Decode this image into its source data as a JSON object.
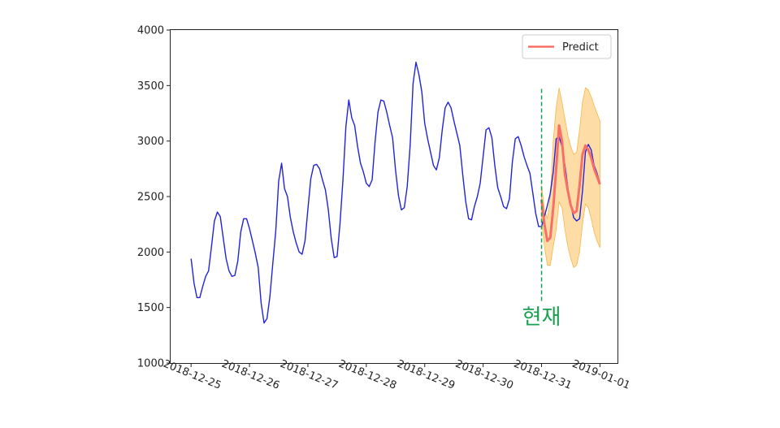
{
  "chart_data": {
    "type": "line",
    "title": "",
    "xlabel": "",
    "ylabel": "",
    "x_ticks": [
      "2018-12-25",
      "2018-12-26",
      "2018-12-27",
      "2018-12-28",
      "2018-12-29",
      "2018-12-30",
      "2018-12-31",
      "2019-01-01"
    ],
    "y_ticks": [
      "1000",
      "1500",
      "2000",
      "2500",
      "3000",
      "3500",
      "4000"
    ],
    "ylim": [
      1000,
      4000
    ],
    "xlim_days": [
      -0.35,
      7.3
    ],
    "grid": false,
    "legend_position": "top-right",
    "colors": {
      "observed": "#2222dd",
      "predict": "#f77067",
      "band": "#fdd795",
      "band_edge": "#f8b64a",
      "now_line": "#1aa052",
      "annotation": "#1aa052"
    },
    "series": [
      {
        "name": "",
        "x": [
          0,
          0.05,
          0.1,
          0.15,
          0.2,
          0.25,
          0.3,
          0.35,
          0.4,
          0.45,
          0.5,
          0.55,
          0.6,
          0.65,
          0.7,
          0.75,
          0.8,
          0.85,
          0.9,
          0.95,
          1.0,
          1.05,
          1.1,
          1.15,
          1.2,
          1.25,
          1.3,
          1.35,
          1.4,
          1.45,
          1.5,
          1.55,
          1.6,
          1.65,
          1.7,
          1.75,
          1.8,
          1.85,
          1.9,
          1.95,
          2.0,
          2.05,
          2.1,
          2.15,
          2.2,
          2.25,
          2.3,
          2.35,
          2.4,
          2.45,
          2.5,
          2.55,
          2.6,
          2.65,
          2.7,
          2.75,
          2.8,
          2.85,
          2.9,
          2.95,
          3.0,
          3.05,
          3.1,
          3.15,
          3.2,
          3.25,
          3.3,
          3.35,
          3.4,
          3.45,
          3.5,
          3.55,
          3.6,
          3.65,
          3.7,
          3.75,
          3.8,
          3.85,
          3.9,
          3.95,
          4.0,
          4.05,
          4.1,
          4.15,
          4.2,
          4.25,
          4.3,
          4.35,
          4.4,
          4.45,
          4.5,
          4.55,
          4.6,
          4.65,
          4.7,
          4.75,
          4.8,
          4.85,
          4.9,
          4.95,
          5.0,
          5.05,
          5.1,
          5.15,
          5.2,
          5.25,
          5.3,
          5.35,
          5.4,
          5.45,
          5.5,
          5.55,
          5.6,
          5.65,
          5.7,
          5.75,
          5.8,
          5.85,
          5.9,
          5.95,
          6.0
        ],
        "values": [
          1940,
          1720,
          1590,
          1590,
          1690,
          1780,
          1830,
          2050,
          2280,
          2360,
          2320,
          2130,
          1940,
          1830,
          1780,
          1790,
          1920,
          2180,
          2300,
          2300,
          2210,
          2100,
          1990,
          1860,
          1540,
          1360,
          1400,
          1600,
          1900,
          2190,
          2640,
          2800,
          2570,
          2500,
          2310,
          2180,
          2080,
          2000,
          1980,
          2100,
          2390,
          2660,
          2780,
          2790,
          2750,
          2650,
          2560,
          2380,
          2120,
          1950,
          1960,
          2260,
          2650,
          3130,
          3370,
          3210,
          3140,
          2950,
          2800,
          2720,
          2620,
          2590,
          2650,
          2990,
          3260,
          3370,
          3360,
          3260,
          3140,
          3030,
          2740,
          2510,
          2380,
          2400,
          2590,
          2960,
          3520,
          3710,
          3600,
          3440,
          3160,
          3020,
          2900,
          2780,
          2740,
          2850,
          3100,
          3300,
          3350,
          3300,
          3180,
          3070,
          2960,
          2700,
          2460,
          2300,
          2290,
          2410,
          2500,
          2620,
          2860,
          3100,
          3120,
          3030,
          2780,
          2580,
          2500,
          2410,
          2390,
          2480,
          2810,
          3020,
          3040,
          2960,
          2860,
          2780,
          2710,
          2530,
          2350,
          2230,
          2230
        ]
      },
      {
        "name": "",
        "x": [
          6.0,
          6.05,
          6.1,
          6.15,
          6.2,
          6.25,
          6.3,
          6.35,
          6.4,
          6.45,
          6.5,
          6.55,
          6.6,
          6.65,
          6.7,
          6.75,
          6.8,
          6.85,
          6.9,
          6.95,
          7.0
        ],
        "values": [
          2230,
          2320,
          2420,
          2530,
          2720,
          3020,
          3040,
          2950,
          2780,
          2580,
          2420,
          2310,
          2280,
          2300,
          2550,
          2900,
          2970,
          2920,
          2780,
          2710,
          2620
        ]
      },
      {
        "name": "Predict",
        "x": [
          6.0,
          6.05,
          6.1,
          6.15,
          6.2,
          6.25,
          6.3,
          6.35,
          6.4,
          6.45,
          6.5,
          6.55,
          6.6,
          6.65,
          6.7,
          6.75,
          6.8,
          6.85,
          6.9,
          6.95,
          7.0
        ],
        "values": [
          2470,
          2250,
          2100,
          2130,
          2400,
          2750,
          3140,
          3000,
          2700,
          2550,
          2420,
          2350,
          2370,
          2600,
          2880,
          2960,
          2920,
          2850,
          2750,
          2680,
          2610
        ],
        "upper": [
          2600,
          2380,
          2300,
          2500,
          3000,
          3300,
          3480,
          3350,
          3200,
          3050,
          2950,
          2880,
          2900,
          3100,
          3350,
          3480,
          3460,
          3400,
          3320,
          3250,
          3180
        ],
        "lower": [
          2300,
          2050,
          1880,
          1880,
          2050,
          2200,
          2450,
          2400,
          2200,
          2050,
          1940,
          1860,
          1880,
          2000,
          2250,
          2430,
          2400,
          2300,
          2180,
          2100,
          2040
        ]
      }
    ],
    "now_line": {
      "x": 6.0,
      "y_from": 1560,
      "y_to": 3470
    },
    "annotation": {
      "text": "현재",
      "x": 6.0,
      "y": 1350
    }
  }
}
